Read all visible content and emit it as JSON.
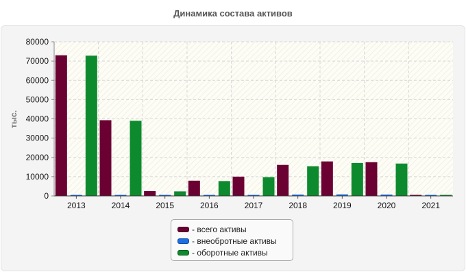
{
  "chart_data": {
    "type": "bar",
    "title": "Динамика состава активов",
    "ylabel": "тыс.",
    "xlabel": "",
    "ylim": [
      0,
      80000
    ],
    "yticks": [
      0,
      10000,
      20000,
      30000,
      40000,
      50000,
      60000,
      70000,
      80000
    ],
    "categories": [
      "2013",
      "2014",
      "2015",
      "2016",
      "2017",
      "2018",
      "2019",
      "2020",
      "2021"
    ],
    "series": [
      {
        "name": "- всего активы",
        "color": "#6b0033",
        "values": [
          73000,
          39300,
          2500,
          7900,
          10000,
          16100,
          17900,
          17500,
          300
        ]
      },
      {
        "name": "- внеобротные активы",
        "color": "#1a6ee8",
        "values": [
          200,
          300,
          150,
          200,
          250,
          700,
          800,
          700,
          100
        ]
      },
      {
        "name": "- оборотные активы",
        "color": "#0e8a2e",
        "values": [
          72800,
          39000,
          2350,
          7700,
          9750,
          15400,
          17100,
          16800,
          200
        ]
      }
    ],
    "grid": true,
    "legend": "bottom-center"
  }
}
